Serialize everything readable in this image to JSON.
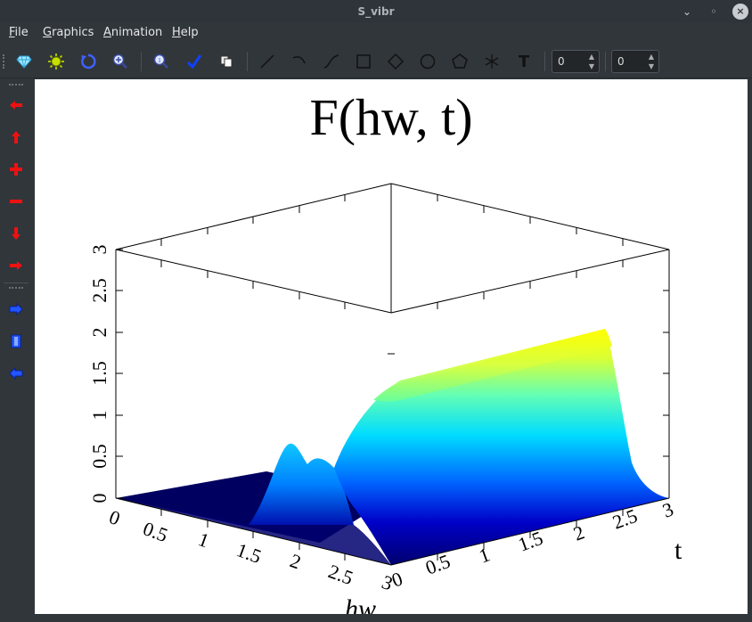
{
  "window": {
    "title": "S_vibr"
  },
  "window_controls": {
    "minimize": "⌄",
    "maximize": "◦",
    "close": "×"
  },
  "menu": [
    {
      "label": "File"
    },
    {
      "label": "Graphics"
    },
    {
      "label": "Animation"
    },
    {
      "label": "Help"
    }
  ],
  "toolbar": {
    "buttons": [
      "gem-icon",
      "sun-icon",
      "rotate-icon",
      "zoom-in-icon",
      "zoom-icon",
      "check-icon",
      "copy-icon",
      "line-icon",
      "arc-icon",
      "curve-icon",
      "rectangle-icon",
      "diamond-icon",
      "circle-icon",
      "pentagon-icon",
      "asterisk-icon",
      "text-icon"
    ],
    "text_tool_label": "T",
    "spin1_value": "0",
    "spin2_value": "0"
  },
  "sidebar": {
    "buttons": [
      "arrow-left-icon",
      "arrow-up-icon",
      "plus-icon",
      "minus-icon",
      "arrow-down-icon",
      "arrow-right-icon",
      "blue-arrow-right-icon",
      "film-icon",
      "blue-arrow-left-icon"
    ]
  },
  "chart_data": {
    "type": "surface",
    "title": "F(hw, t)",
    "xlabel": "hw",
    "ylabel": "t",
    "zlabel": "",
    "xlim": [
      0,
      3
    ],
    "ylim": [
      0,
      3
    ],
    "zlim": [
      0,
      3
    ],
    "x_ticks": [
      "0",
      "0.5",
      "1",
      "1.5",
      "2",
      "2.5",
      "3"
    ],
    "y_ticks": [
      "0",
      "0.5",
      "1",
      "1.5",
      "2",
      "2.5",
      "3"
    ],
    "z_ticks": [
      "0",
      "0.5",
      "1",
      "1.5",
      "2",
      "2.5",
      "3"
    ],
    "colormap": [
      "#00006e",
      "#0000c8",
      "#0064ff",
      "#00dcff",
      "#64ffb4",
      "#dcff32",
      "#ffff00"
    ],
    "description_points": [
      {
        "hw": 1.5,
        "t": 0.0,
        "F": 0.0
      },
      {
        "hw": 2.0,
        "t": 0.2,
        "F": 0.7
      },
      {
        "hw": 2.0,
        "t": 0.6,
        "F": 0.85
      },
      {
        "hw": 2.0,
        "t": 1.2,
        "F": 1.15
      },
      {
        "hw": 2.0,
        "t": 2.0,
        "F": 1.35
      },
      {
        "hw": 2.0,
        "t": 2.9,
        "F": 1.5
      },
      {
        "hw": 2.8,
        "t": 3.0,
        "F": 0.05
      }
    ]
  }
}
